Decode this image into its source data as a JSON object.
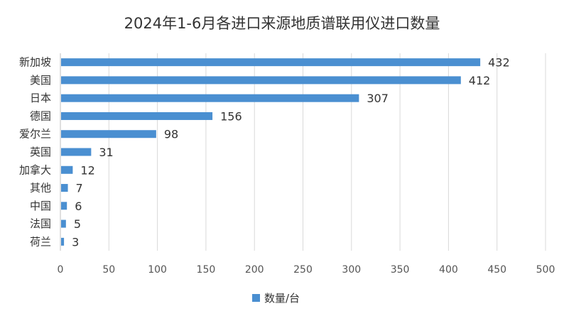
{
  "chart_data": {
    "type": "bar",
    "orientation": "horizontal",
    "title": "2024年1-6月各进口来源地质谱联用仪进口数量",
    "categories": [
      "新加坡",
      "美国",
      "日本",
      "德国",
      "爱尔兰",
      "英国",
      "加拿大",
      "其他",
      "中国",
      "法国",
      "荷兰"
    ],
    "series": [
      {
        "name": "数量/台",
        "values": [
          432,
          412,
          307,
          156,
          98,
          31,
          12,
          7,
          6,
          5,
          3
        ],
        "color": "#4a8fd1"
      }
    ],
    "xlim": [
      0,
      500
    ],
    "xticks": [
      0,
      50,
      100,
      150,
      200,
      250,
      300,
      350,
      400,
      450,
      500
    ],
    "grid": true,
    "legend": "bottom",
    "data_labels": true
  }
}
